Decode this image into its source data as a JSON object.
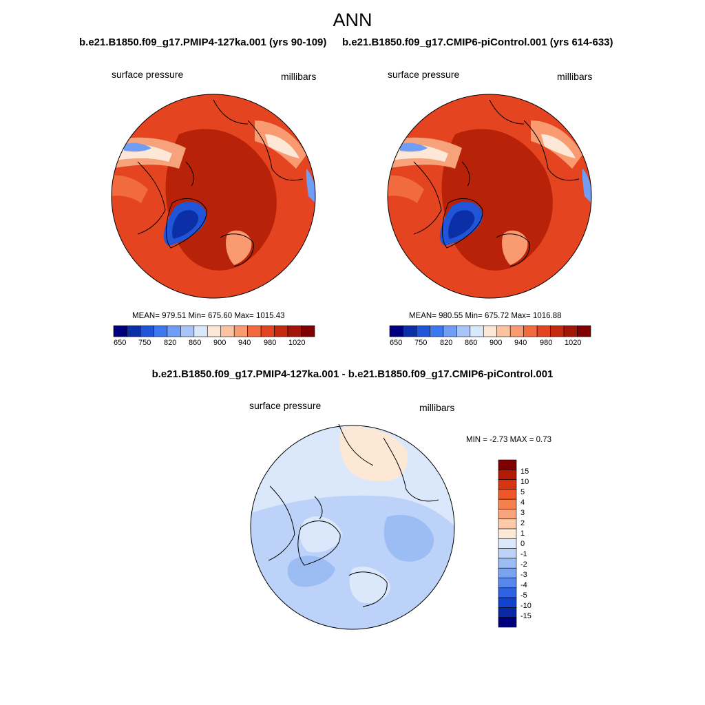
{
  "title": "ANN",
  "panels": [
    {
      "case_title": "b.e21.B1850.f09_g17.PMIP4-127ka.001 (yrs 90-109)",
      "variable": "surface pressure",
      "units": "millibars",
      "stats": "MEAN= 979.51  Min= 675.60  Max= 1015.43",
      "colorbar_ticks": [
        "650",
        "750",
        "820",
        "860",
        "900",
        "940",
        "980",
        "1020"
      ]
    },
    {
      "case_title": "b.e21.B1850.f09_g17.CMIP6-piControl.001 (yrs 614-633)",
      "variable": "surface pressure",
      "units": "millibars",
      "stats": "MEAN= 980.55  Min= 675.72  Max= 1016.88",
      "colorbar_ticks": [
        "650",
        "750",
        "820",
        "860",
        "900",
        "940",
        "980",
        "1020"
      ]
    }
  ],
  "difference": {
    "title": "b.e21.B1850.f09_g17.PMIP4-127ka.001 - b.e21.B1850.f09_g17.CMIP6-piControl.001",
    "variable": "surface pressure",
    "units": "millibars",
    "stats": "MIN =  -2.73 MAX =   0.73",
    "colorbar_ticks": [
      "15",
      "10",
      "5",
      "4",
      "3",
      "2",
      "1",
      "0",
      "-1",
      "-2",
      "-3",
      "-4",
      "-5",
      "-10",
      "-15"
    ]
  },
  "colors": {
    "abs_scale": [
      "#00007f",
      "#0c2fa8",
      "#1f55d6",
      "#3e78ee",
      "#6f9ef4",
      "#a9c5f7",
      "#dae8fb",
      "#fde7d6",
      "#fcc3a2",
      "#f99a70",
      "#f26b3f",
      "#e4441f",
      "#c42a0f",
      "#a31607",
      "#7e0000"
    ],
    "diff_scale": [
      "#7e0000",
      "#b31a04",
      "#d8340f",
      "#ef5727",
      "#f57f4d",
      "#f9a57b",
      "#fccaa8",
      "#fde8d6",
      "#dbe8fb",
      "#bcd2f8",
      "#9cbcf4",
      "#7aa3ef",
      "#5687eb",
      "#2f63e3",
      "#1243cf",
      "#0a28a6",
      "#00007f"
    ]
  }
}
